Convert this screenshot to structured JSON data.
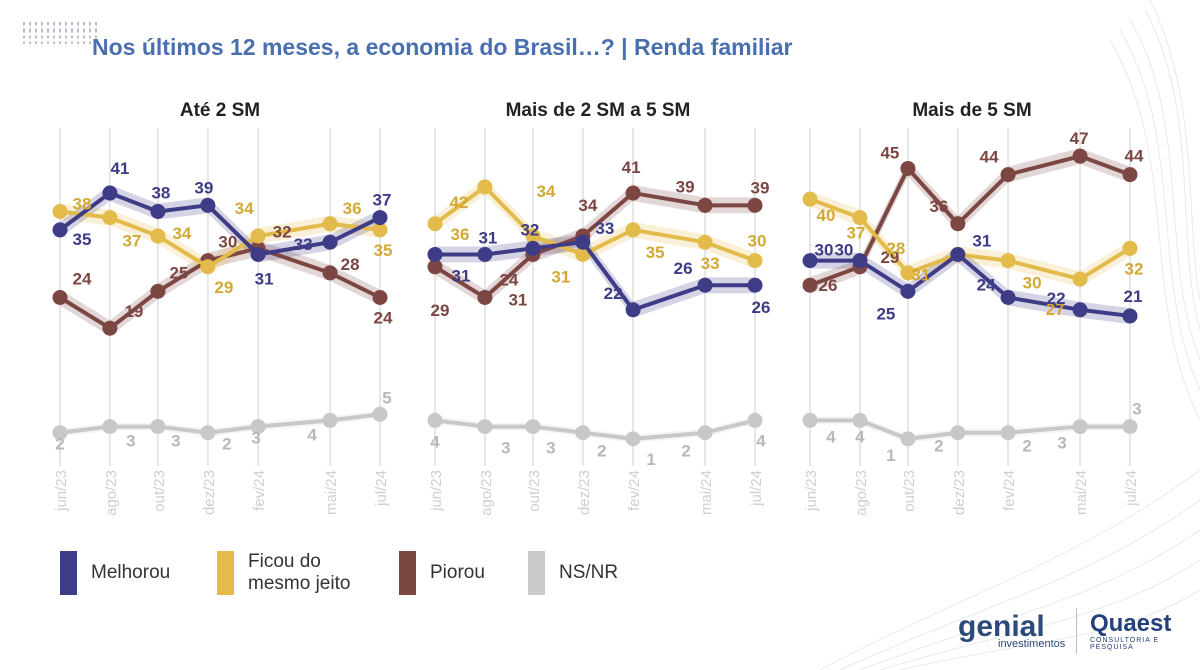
{
  "title": "Nos últimos 12 meses, a economia do Brasil…? | Renda familiar",
  "legend": [
    {
      "label": "Melhorou",
      "color": "#3e3c86"
    },
    {
      "label": "Ficou do mesmo jeito",
      "color": "#e3bb4a"
    },
    {
      "label": "Piorou",
      "color": "#7c4643"
    },
    {
      "label": "NS/NR",
      "color": "#cbcbcb"
    }
  ],
  "brand": {
    "genial": "genial",
    "genial_sub": "investimentos",
    "quaest": "Quaest",
    "quaest_sub": "CONSULTORIA E PESQUISA"
  },
  "colors": {
    "melhorou": "#3e3c86",
    "ficou": "#e3bb4a",
    "piorou": "#7c4643",
    "nsnr": "#c8c8c8",
    "title": "#4a6fb0"
  },
  "chart_data": [
    {
      "type": "line",
      "title": "Até 2 SM",
      "x": [
        "jun/23",
        "ago/23",
        "out/23",
        "dez/23",
        "fev/24",
        "mai/24",
        "jul/24"
      ],
      "ylim": [
        0,
        50
      ],
      "series": [
        {
          "name": "Melhorou",
          "values": [
            35,
            41,
            38,
            39,
            31,
            33,
            37
          ]
        },
        {
          "name": "Ficou do mesmo jeito",
          "values": [
            38,
            37,
            34,
            29,
            34,
            36,
            35
          ]
        },
        {
          "name": "Piorou",
          "values": [
            24,
            19,
            25,
            30,
            32,
            28,
            24
          ]
        },
        {
          "name": "NS/NR",
          "values": [
            2,
            3,
            3,
            2,
            3,
            4,
            5
          ]
        }
      ]
    },
    {
      "type": "line",
      "title": "Mais de 2 SM a 5 SM",
      "x": [
        "jun/23",
        "ago/23",
        "out/23",
        "dez/23",
        "fev/24",
        "mai/24",
        "jul/24"
      ],
      "ylim": [
        0,
        50
      ],
      "series": [
        {
          "name": "Melhorou",
          "values": [
            31,
            31,
            32,
            33,
            22,
            26,
            26
          ]
        },
        {
          "name": "Ficou do mesmo jeito",
          "values": [
            36,
            42,
            34,
            31,
            35,
            33,
            30
          ]
        },
        {
          "name": "Piorou",
          "values": [
            29,
            24,
            31,
            34,
            41,
            39,
            39
          ]
        },
        {
          "name": "NS/NR",
          "values": [
            4,
            3,
            3,
            2,
            1,
            2,
            4
          ]
        }
      ]
    },
    {
      "type": "line",
      "title": "Mais de 5 SM",
      "x": [
        "jun/23",
        "ago/23",
        "out/23",
        "dez/23",
        "fev/24",
        "mai/24",
        "jul/24"
      ],
      "ylim": [
        0,
        50
      ],
      "series": [
        {
          "name": "Melhorou",
          "values": [
            30,
            30,
            25,
            31,
            24,
            22,
            21
          ]
        },
        {
          "name": "Ficou do mesmo jeito",
          "values": [
            40,
            37,
            28,
            31,
            30,
            27,
            32
          ]
        },
        {
          "name": "Piorou",
          "values": [
            26,
            29,
            45,
            36,
            44,
            47,
            44
          ]
        },
        {
          "name": "NS/NR",
          "values": [
            4,
            4,
            1,
            2,
            2,
            3,
            3
          ]
        }
      ]
    }
  ]
}
